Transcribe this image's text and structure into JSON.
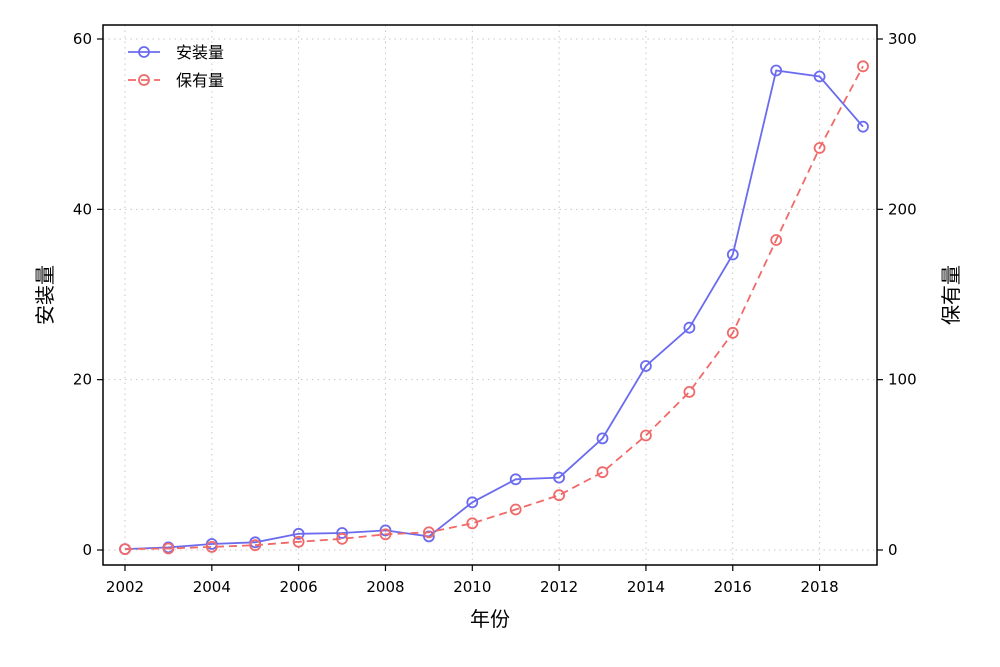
{
  "chart_data": {
    "type": "line",
    "title": "",
    "xlabel": "年份",
    "ylabel": "安装量",
    "ylabel_right": "保有量",
    "xlim": [
      2002,
      2019
    ],
    "ylim": [
      0,
      60
    ],
    "ylim_right": [
      0,
      300
    ],
    "x_ticks": [
      2002,
      2004,
      2006,
      2008,
      2010,
      2012,
      2014,
      2016,
      2018
    ],
    "y_ticks": [
      0,
      20,
      40,
      60
    ],
    "y_ticks_right": [
      0,
      100,
      200,
      300
    ],
    "grid": true,
    "legend_position": "top-left",
    "x": [
      2002,
      2003,
      2004,
      2005,
      2006,
      2007,
      2008,
      2009,
      2010,
      2011,
      2012,
      2013,
      2014,
      2015,
      2016,
      2017,
      2018,
      2019
    ],
    "series": [
      {
        "name": "安装量",
        "axis": "left",
        "color": "#6b6bef",
        "style": "solid",
        "marker": "circle",
        "values": [
          0.1,
          0.3,
          0.7,
          0.9,
          1.9,
          2.0,
          2.3,
          1.6,
          5.6,
          8.3,
          8.5,
          13.1,
          21.6,
          26.1,
          34.7,
          56.3,
          55.6,
          49.7
        ]
      },
      {
        "name": "保有量",
        "axis": "right",
        "color": "#f06a6a",
        "style": "dashed",
        "marker": "circle",
        "values": [
          0.5,
          0.9,
          1.8,
          2.8,
          4.8,
          6.6,
          9.2,
          10.4,
          15.7,
          23.8,
          32.2,
          45.7,
          67.2,
          92.8,
          127.5,
          182.0,
          236.0,
          284.0
        ]
      }
    ]
  }
}
